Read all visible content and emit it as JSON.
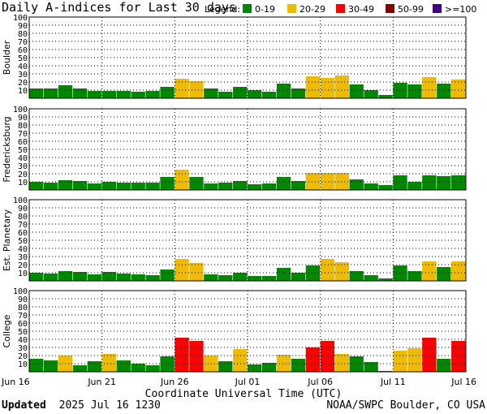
{
  "chart_data": {
    "type": "bar",
    "title": "Daily A-indices for Last 30 days",
    "legend_title": "Legend:",
    "legend": [
      {
        "label": "0-19",
        "color": "#008800"
      },
      {
        "label": "20-29",
        "color": "#eebb00"
      },
      {
        "label": "30-49",
        "color": "#ff0000"
      },
      {
        "label": "50-99",
        "color": "#880000"
      },
      {
        "label": ">=100",
        "color": "#440088"
      }
    ],
    "ylim": [
      0,
      100
    ],
    "yticks": [
      10,
      20,
      30,
      40,
      50,
      60,
      70,
      80,
      90,
      100
    ],
    "xlabel": "Coordinate Universal Time (UTC)",
    "xtick_labels": [
      "Jun 16",
      "Jun 21",
      "Jun 26",
      "Jul 01",
      "Jul 06",
      "Jul 11",
      "Jul 16"
    ],
    "n_days": 30,
    "grid": true,
    "panels": [
      {
        "ylabel": "Boulder",
        "values": [
          12,
          12,
          16,
          12,
          9,
          9,
          9,
          8,
          9,
          14,
          24,
          21,
          12,
          8,
          14,
          10,
          8,
          18,
          12,
          27,
          25,
          28,
          17,
          10,
          4,
          19,
          17,
          26,
          18,
          23
        ]
      },
      {
        "ylabel": "Fredericksburg",
        "values": [
          10,
          9,
          12,
          11,
          8,
          10,
          9,
          9,
          9,
          16,
          25,
          16,
          8,
          9,
          11,
          7,
          8,
          16,
          11,
          21,
          21,
          21,
          13,
          8,
          6,
          18,
          10,
          18,
          17,
          18
        ]
      },
      {
        "ylabel": "Est. Planetary",
        "values": [
          10,
          9,
          12,
          11,
          8,
          11,
          9,
          8,
          7,
          14,
          27,
          22,
          8,
          7,
          10,
          6,
          6,
          16,
          10,
          19,
          27,
          23,
          12,
          7,
          3,
          19,
          12,
          24,
          17,
          24
        ]
      },
      {
        "ylabel": "College",
        "values": [
          16,
          14,
          20,
          8,
          13,
          22,
          14,
          10,
          8,
          19,
          42,
          38,
          20,
          13,
          28,
          9,
          11,
          21,
          16,
          30,
          38,
          22,
          19,
          12,
          1,
          26,
          29,
          42,
          16,
          38
        ]
      }
    ]
  },
  "footer": {
    "updated_label": "Updated",
    "updated_value": "2025 Jul 16 1230",
    "credit": "NOAA/SWPC Boulder, CO USA"
  }
}
